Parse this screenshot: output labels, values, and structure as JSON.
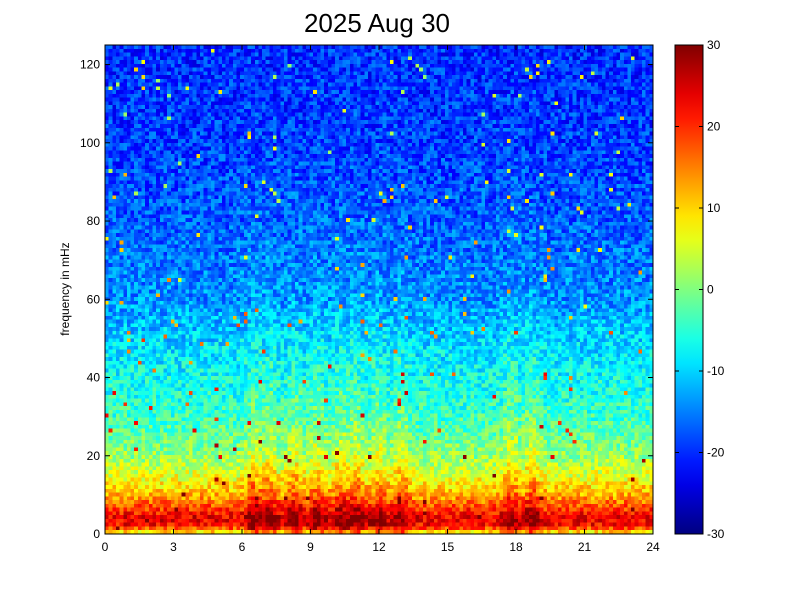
{
  "chart_data": {
    "type": "heatmap",
    "title": "2025 Aug 30",
    "xlabel": "",
    "ylabel": "frequency in mHz",
    "xlim": [
      0,
      24
    ],
    "ylim": [
      0,
      125
    ],
    "x_ticks": [
      0,
      3,
      6,
      9,
      12,
      15,
      18,
      21,
      24
    ],
    "y_ticks": [
      0,
      20,
      40,
      60,
      80,
      100,
      120
    ],
    "colorbar": {
      "range": [
        -30,
        30
      ],
      "ticks": [
        30,
        20,
        10,
        0,
        -10,
        -20,
        -30
      ],
      "colormap": "jet"
    },
    "time_bins": 150,
    "freq_bins": 130,
    "profile_freq_mHz": [
      0,
      2,
      4,
      6,
      10,
      15,
      20,
      30,
      40,
      50,
      60,
      80,
      100,
      125
    ],
    "profile_level": [
      6,
      22,
      24,
      20,
      12,
      6,
      1,
      -4,
      -7,
      -10,
      -14,
      -17,
      -19,
      -20
    ],
    "active_times_h": [
      6.5,
      7.2,
      8.3,
      9.3,
      10.3,
      11.0,
      12.0,
      13.0,
      17.8,
      18.7
    ],
    "activity_boost": 8,
    "noise_amplitude": 5
  }
}
